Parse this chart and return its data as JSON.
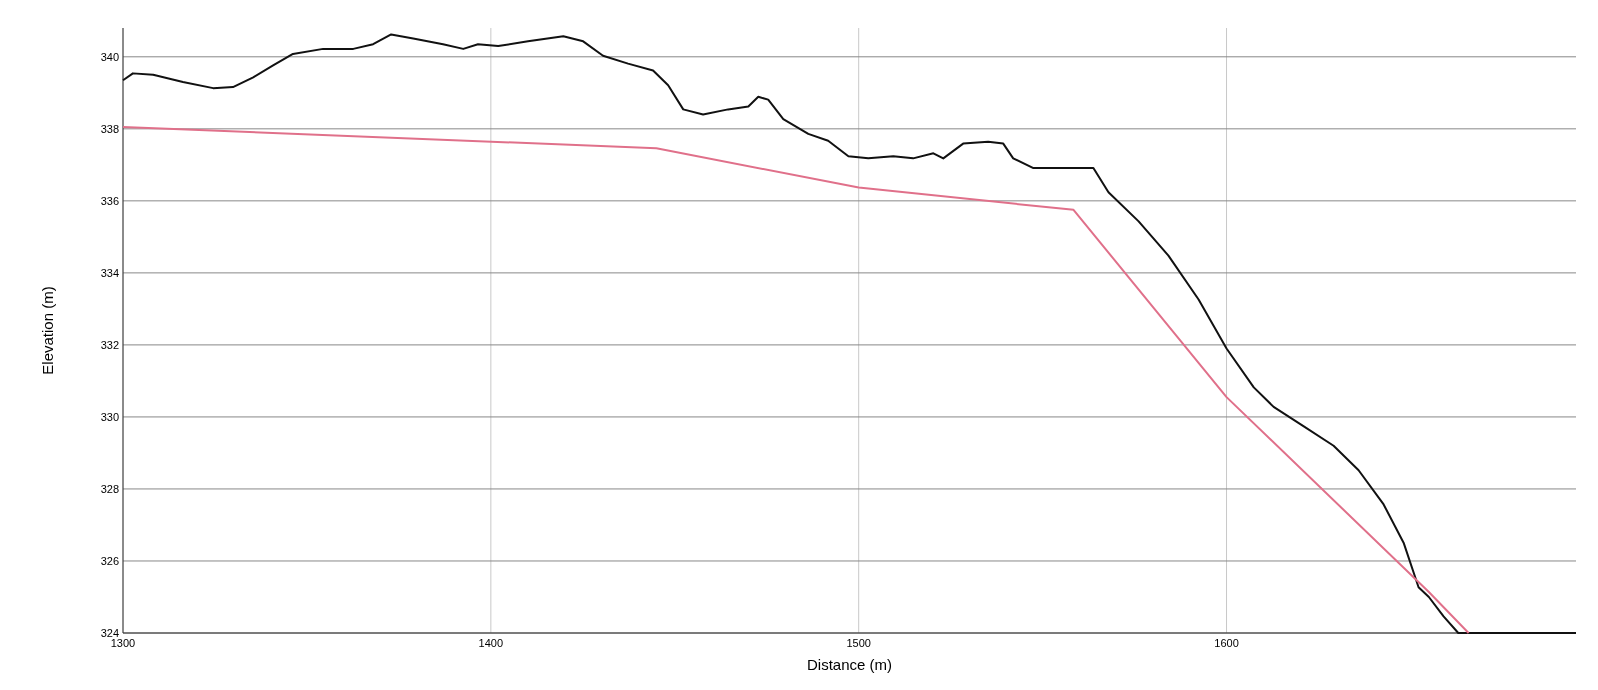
{
  "chart_data": {
    "type": "line",
    "xlabel": "Distance (m)",
    "ylabel": "Elevation (m)",
    "xlim": [
      1300,
      1695
    ],
    "ylim": [
      324,
      340.8
    ],
    "xticks": [
      1300,
      1400,
      1500,
      1600
    ],
    "yticks": [
      324,
      326,
      328,
      330,
      332,
      334,
      336,
      338,
      340
    ],
    "grid": true,
    "series": [
      {
        "color": "#111111",
        "x": [
          1300,
          1302.7,
          1308.2,
          1316.3,
          1324.5,
          1329.9,
          1335.4,
          1340.8,
          1346.2,
          1354.4,
          1362.6,
          1368,
          1372.9,
          1378.9,
          1387,
          1392.5,
          1396.5,
          1402,
          1410.1,
          1419.7,
          1425.1,
          1430.5,
          1437.3,
          1444.1,
          1448.2,
          1452.3,
          1457.7,
          1464.5,
          1470,
          1472.7,
          1475.4,
          1479.5,
          1486.3,
          1491.7,
          1497.2,
          1502.6,
          1509.4,
          1514.8,
          1520.3,
          1523,
          1528.4,
          1535.2,
          1539.3,
          1542,
          1547.5,
          1554.3,
          1563.8,
          1567.9,
          1576.1,
          1584.2,
          1592.4,
          1600,
          1607.4,
          1612.8,
          1621,
          1629.1,
          1635.9,
          1642.7,
          1648.2,
          1652.2,
          1655,
          1659,
          1663,
          1695
        ],
        "values": [
          339.35,
          339.54,
          339.5,
          339.3,
          339.13,
          339.16,
          339.43,
          339.76,
          340.08,
          340.22,
          340.22,
          340.35,
          340.62,
          340.51,
          340.35,
          340.22,
          340.35,
          340.3,
          340.43,
          340.57,
          340.43,
          340.03,
          339.81,
          339.62,
          339.21,
          338.54,
          338.4,
          338.54,
          338.62,
          338.89,
          338.81,
          338.27,
          337.86,
          337.67,
          337.24,
          337.18,
          337.24,
          337.18,
          337.32,
          337.18,
          337.59,
          337.64,
          337.59,
          337.18,
          336.91,
          336.91,
          336.91,
          336.24,
          335.43,
          334.48,
          333.26,
          331.9,
          330.82,
          330.28,
          329.74,
          329.2,
          328.52,
          327.57,
          326.49,
          325.27,
          325,
          324.46,
          324,
          324
        ]
      },
      {
        "color": "#e0708a",
        "x": [
          1300,
          1445,
          1500,
          1558.4,
          1600,
          1655,
          1665.8
        ],
        "values": [
          338.05,
          337.46,
          336.37,
          335.75,
          330.55,
          325.14,
          324
        ]
      }
    ]
  }
}
